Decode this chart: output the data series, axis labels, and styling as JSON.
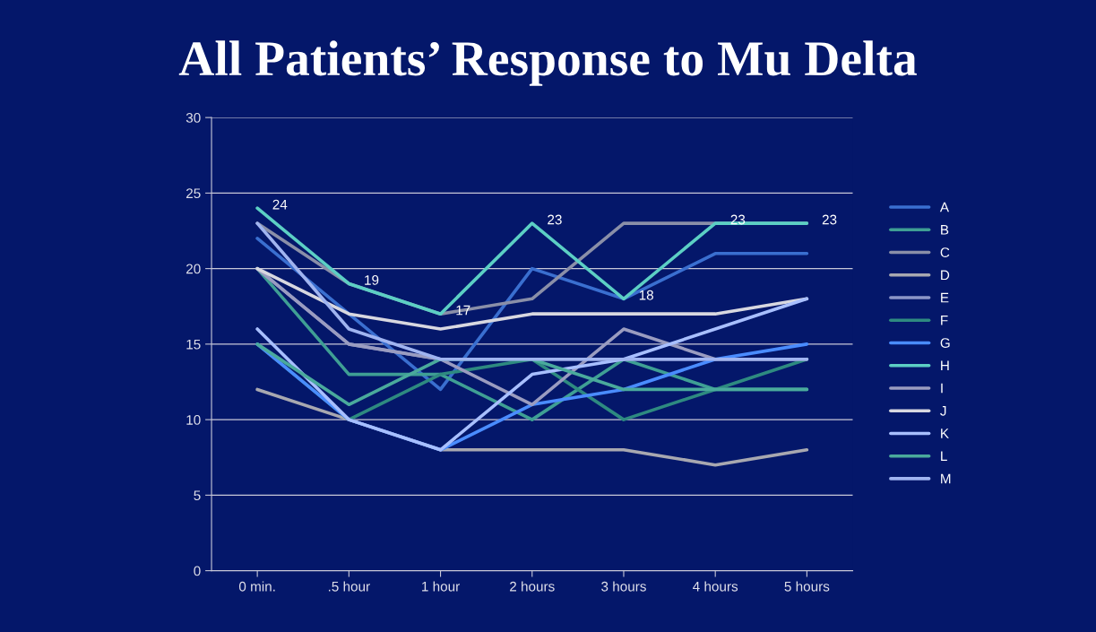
{
  "chart_data": {
    "type": "line",
    "title": "All Patients’ Response to Mu Delta",
    "categories": [
      "0 min.",
      ".5 hour",
      "1 hour",
      "2 hours",
      "3 hours",
      "4 hours",
      "5 hours"
    ],
    "ylim": [
      0,
      30
    ],
    "yticks": [
      0,
      5,
      10,
      15,
      20,
      25,
      30
    ],
    "grid": "y",
    "legend": "right",
    "marker": "none",
    "line_style": "solid",
    "series": [
      {
        "name": "A",
        "color": "#3a6fd0",
        "values": [
          22,
          17,
          12,
          20,
          18,
          21,
          21
        ]
      },
      {
        "name": "B",
        "color": "#3f9f94",
        "values": [
          20,
          13,
          13,
          10,
          14,
          12,
          12
        ]
      },
      {
        "name": "C",
        "color": "#8a8fa8",
        "values": [
          23,
          19,
          17,
          18,
          23,
          23,
          23
        ]
      },
      {
        "name": "D",
        "color": "#a8a8b0",
        "values": [
          12,
          10,
          8,
          8,
          8,
          7,
          8
        ]
      },
      {
        "name": "E",
        "color": "#8c96c8",
        "values": [
          20,
          15,
          14,
          14,
          14,
          14,
          14
        ]
      },
      {
        "name": "F",
        "color": "#2e8a80",
        "values": [
          15,
          10,
          13,
          14,
          10,
          12,
          14
        ]
      },
      {
        "name": "G",
        "color": "#4a8cff",
        "values": [
          15,
          10,
          8,
          11,
          12,
          14,
          15
        ]
      },
      {
        "name": "H",
        "color": "#5ccfc4",
        "values": [
          24,
          19,
          17,
          23,
          18,
          23,
          23
        ],
        "value_labels": [
          "24",
          "19",
          "17",
          "23",
          "18",
          "23",
          "23"
        ]
      },
      {
        "name": "I",
        "color": "#9a9cc0",
        "values": [
          20,
          15,
          14,
          11,
          16,
          14,
          14
        ]
      },
      {
        "name": "J",
        "color": "#d8d8e0",
        "values": [
          20,
          17,
          16,
          17,
          17,
          17,
          18
        ]
      },
      {
        "name": "K",
        "color": "#a8bfff",
        "values": [
          16,
          10,
          8,
          13,
          14,
          16,
          18
        ]
      },
      {
        "name": "L",
        "color": "#4aaa9c",
        "values": [
          15,
          11,
          14,
          14,
          12,
          12,
          12
        ]
      },
      {
        "name": "M",
        "color": "#a0b4f0",
        "values": [
          23,
          16,
          14,
          14,
          14,
          14,
          14
        ]
      }
    ]
  }
}
